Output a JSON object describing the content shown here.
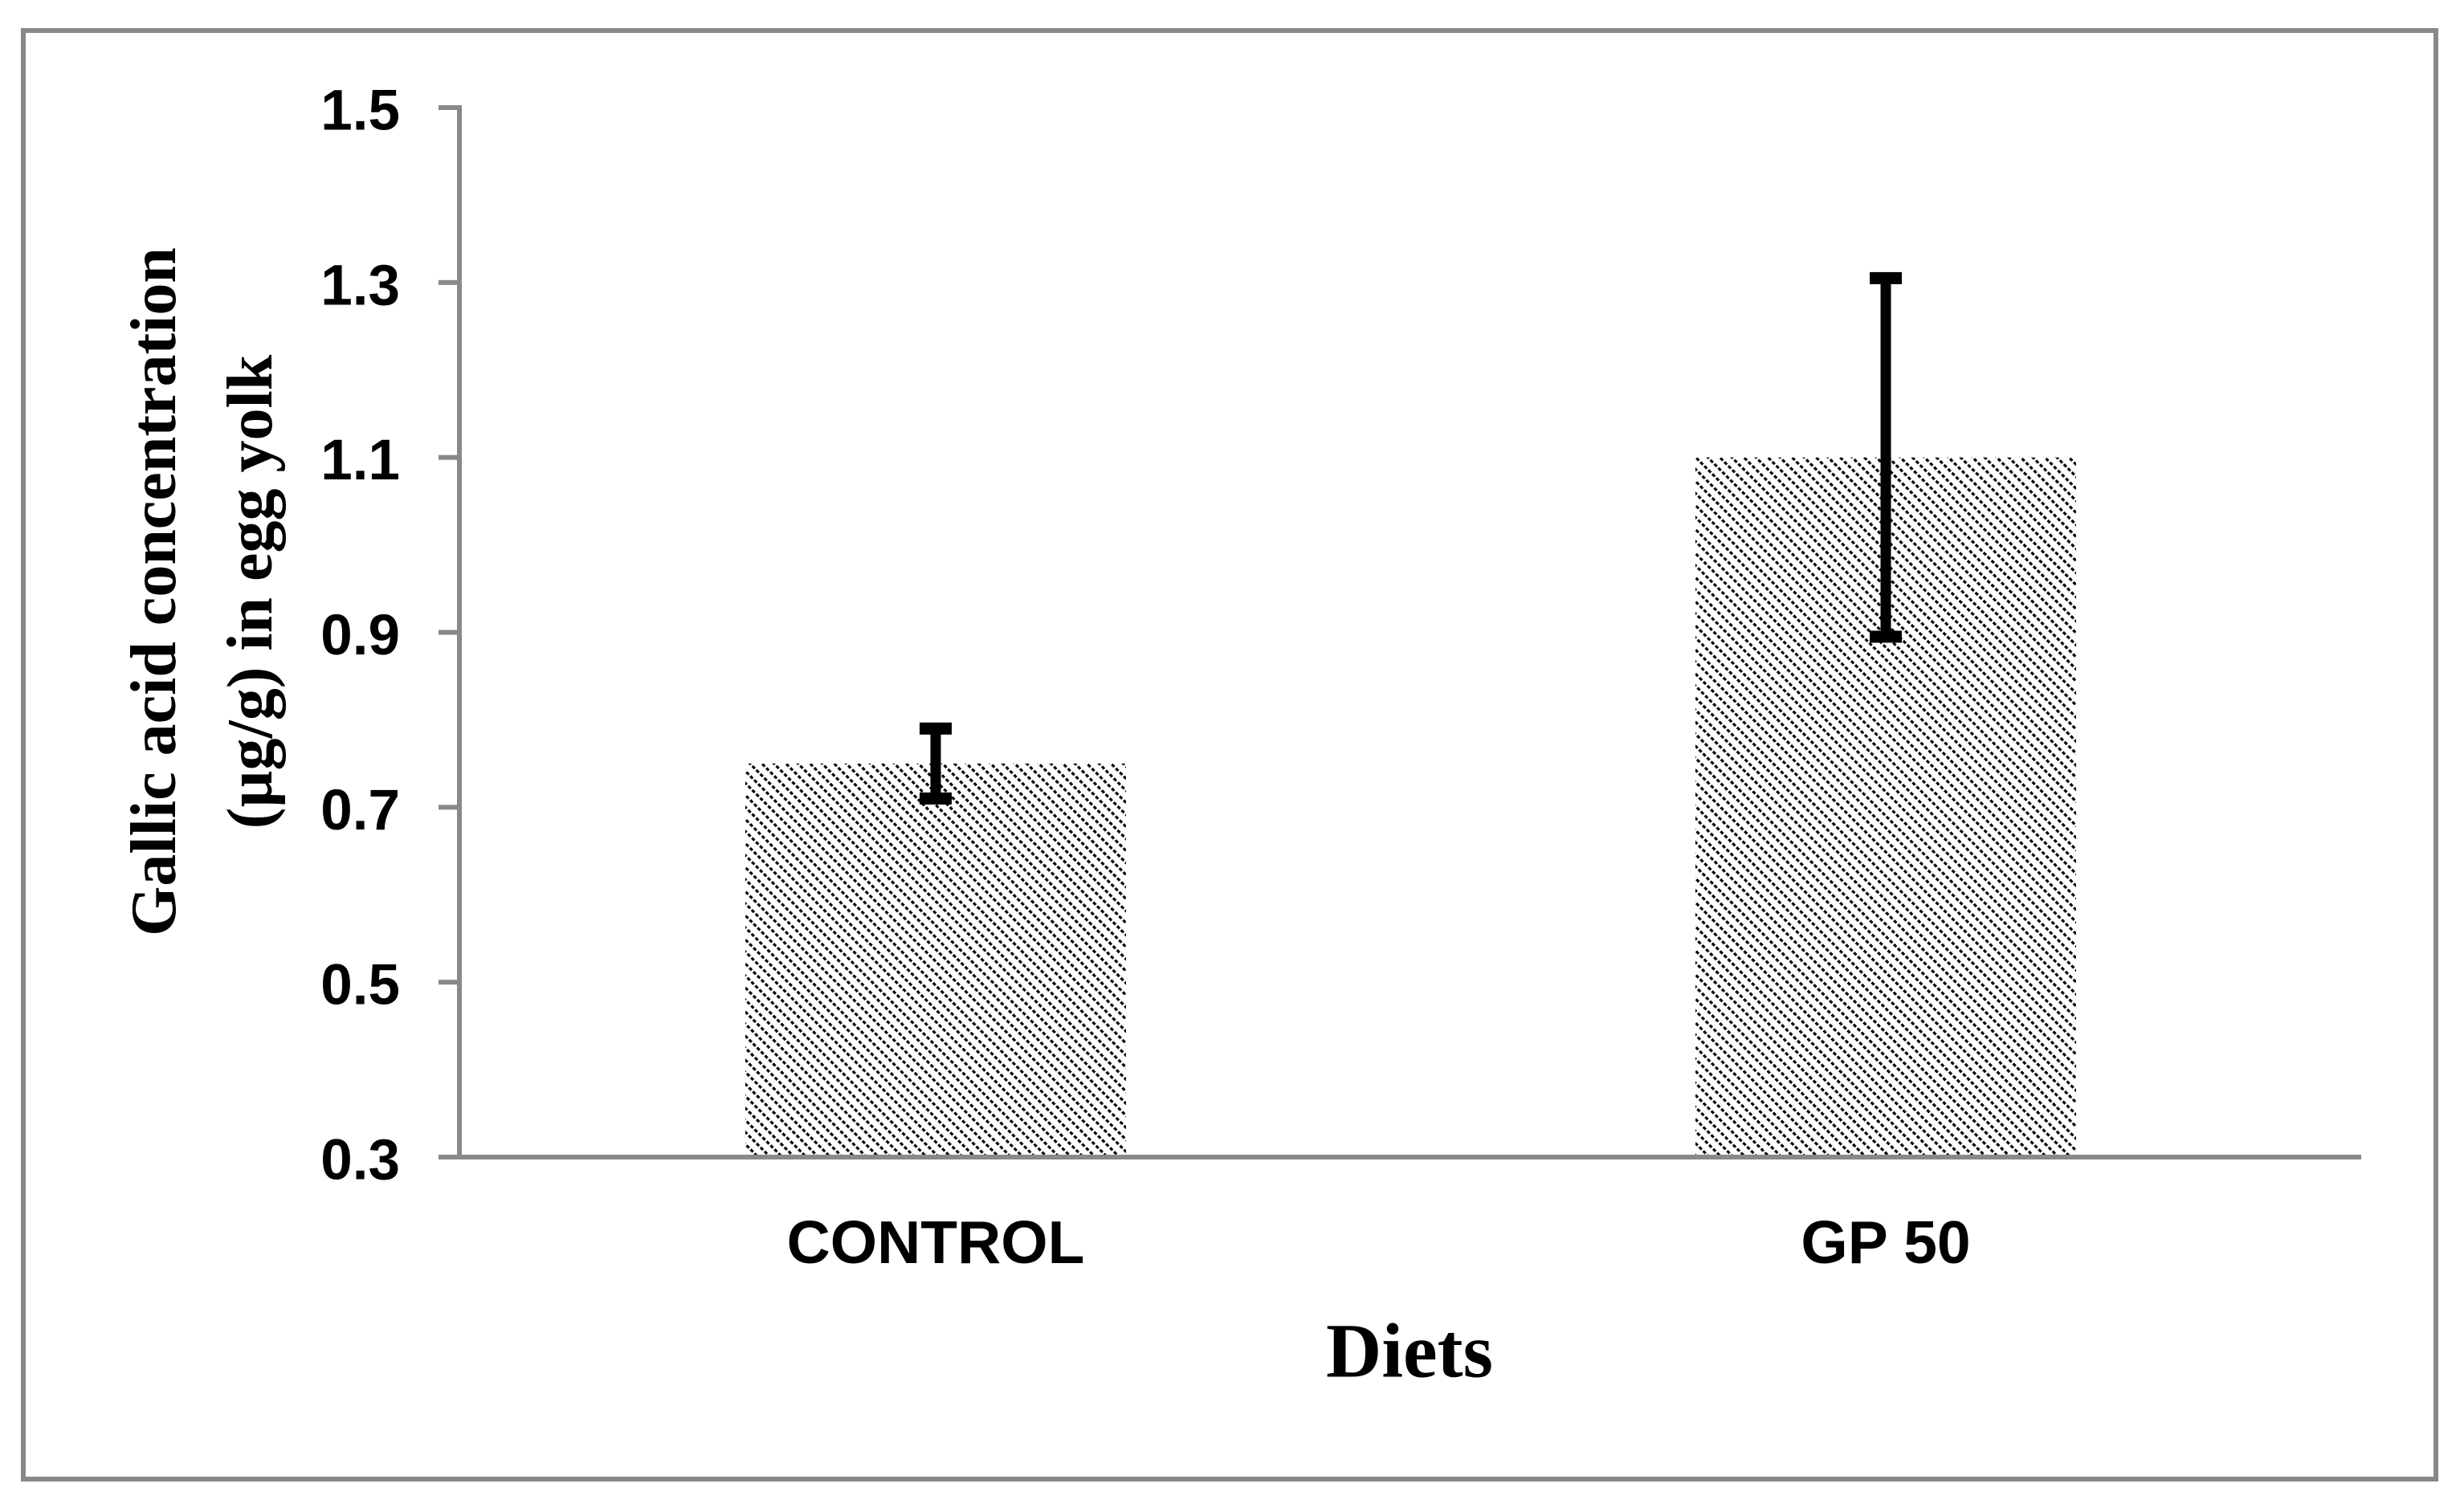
{
  "figure": {
    "background": "#ffffff",
    "border_color": "#888888",
    "border_width": 6
  },
  "chart_data": {
    "type": "bar",
    "title": "",
    "categories": [
      "CONTROL",
      "GP 50"
    ],
    "values": [
      0.75,
      1.1
    ],
    "error_low": [
      0.71,
      0.895
    ],
    "error_high": [
      0.79,
      1.305
    ],
    "xlabel": "Diets",
    "ylabel": "Gallic acid concentration (µg/g) in egg yolk",
    "ylabel_lines": [
      "Gallic acid concentration",
      "(µg/g) in egg yolk"
    ],
    "ylim": [
      0.3,
      1.5
    ],
    "yticks": [
      1.5,
      1.3,
      1.1,
      0.9,
      0.7,
      0.5,
      0.3
    ],
    "ytick_labels": [
      "1.5",
      "1.3",
      "1.1",
      "0.9",
      "0.7",
      "0.5",
      "0.3"
    ],
    "grid": false,
    "legend": "none",
    "bar_fill": "hatch-light-downward-diagonal",
    "colors": {
      "axis": "#898989",
      "frame": "#888888",
      "bar_hatch": "#000000",
      "bar_background": "#ffffff",
      "error_bar": "#000000",
      "text": "#000000",
      "background": "#ffffff"
    }
  }
}
